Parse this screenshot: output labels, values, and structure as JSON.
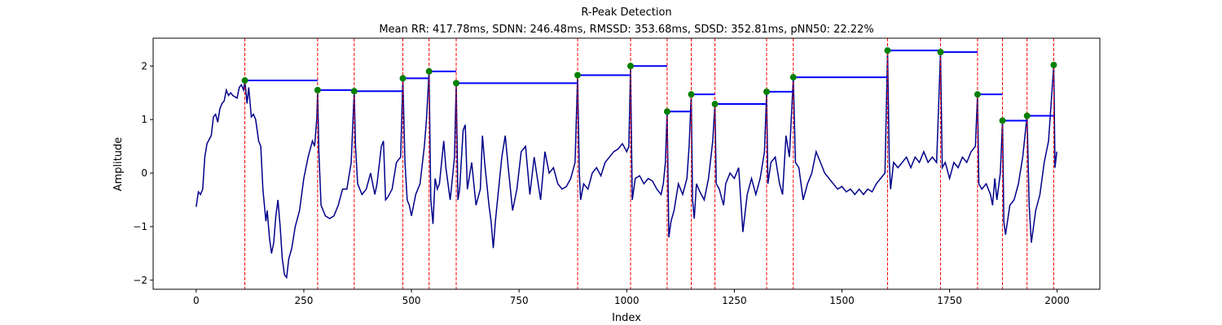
{
  "chart_data": {
    "type": "line",
    "title": "R-Peak Detection",
    "subtitle": "Mean RR: 417.78ms, SDNN: 246.48ms, RMSSD: 353.68ms, SDSD: 352.81ms, pNN50: 22.22%",
    "x_label": "Index",
    "y_label": "Amplitude",
    "xlim": [
      -100,
      2099
    ],
    "ylim": [
      -2.17,
      2.52
    ],
    "xticks": [
      0,
      250,
      500,
      750,
      1000,
      1250,
      1500,
      1750,
      2000
    ],
    "yticks": [
      {
        "value": -2,
        "label": "−2"
      },
      {
        "value": -1,
        "label": "−1"
      },
      0,
      1,
      2
    ],
    "color": "#00008b",
    "x": [
      0,
      5,
      10,
      15,
      20,
      25,
      35,
      40,
      45,
      50,
      55,
      60,
      65,
      70,
      75,
      80,
      85,
      95,
      100,
      105,
      110,
      113,
      118,
      122,
      128,
      133,
      138,
      145,
      150,
      155,
      162,
      165,
      170,
      175,
      180,
      185,
      190,
      195,
      200,
      205,
      210,
      215,
      222,
      230,
      240,
      250,
      260,
      270,
      275,
      280,
      282,
      285,
      290,
      295,
      300,
      310,
      320,
      330,
      340,
      350,
      360,
      367,
      370,
      375,
      385,
      395,
      405,
      415,
      420,
      430,
      435,
      440,
      445,
      455,
      465,
      475,
      480,
      485,
      490,
      495,
      500,
      510,
      520,
      530,
      535,
      541,
      545,
      550,
      555,
      560,
      565,
      575,
      580,
      590,
      595,
      600,
      604,
      608,
      612,
      620,
      625,
      630,
      640,
      650,
      660,
      665,
      670,
      680,
      685,
      690,
      695,
      700,
      710,
      718,
      725,
      735,
      745,
      755,
      765,
      775,
      785,
      800,
      810,
      820,
      830,
      840,
      850,
      860,
      870,
      880,
      886,
      890,
      893,
      900,
      910,
      920,
      930,
      940,
      950,
      960,
      970,
      980,
      990,
      1000,
      1005,
      1009,
      1013,
      1020,
      1030,
      1040,
      1050,
      1060,
      1070,
      1080,
      1085,
      1090,
      1094,
      1098,
      1103,
      1110,
      1120,
      1130,
      1140,
      1145,
      1150,
      1153,
      1157,
      1162,
      1170,
      1180,
      1190,
      1200,
      1205,
      1208,
      1215,
      1225,
      1230,
      1240,
      1250,
      1260,
      1270,
      1280,
      1290,
      1300,
      1310,
      1320,
      1325,
      1328,
      1335,
      1345,
      1355,
      1362,
      1370,
      1378,
      1387,
      1392,
      1400,
      1410,
      1420,
      1430,
      1440,
      1450,
      1460,
      1470,
      1480,
      1490,
      1500,
      1510,
      1520,
      1530,
      1540,
      1550,
      1560,
      1570,
      1580,
      1590,
      1600,
      1606,
      1610,
      1613,
      1620,
      1630,
      1640,
      1650,
      1660,
      1670,
      1680,
      1690,
      1700,
      1710,
      1720,
      1729,
      1733,
      1740,
      1750,
      1760,
      1770,
      1780,
      1790,
      1800,
      1810,
      1815,
      1818,
      1825,
      1835,
      1845,
      1850,
      1855,
      1860,
      1868,
      1873,
      1876,
      1880,
      1890,
      1900,
      1910,
      1920,
      1930,
      1935,
      1940,
      1950,
      1960,
      1970,
      1980,
      1992,
      1995,
      1999
    ],
    "values": [
      -0.63,
      -0.35,
      -0.4,
      -0.3,
      0.3,
      0.55,
      0.7,
      1.05,
      1.1,
      0.95,
      1.2,
      1.3,
      1.35,
      1.55,
      1.45,
      1.5,
      1.45,
      1.4,
      1.6,
      1.65,
      1.55,
      1.73,
      1.3,
      1.6,
      1.05,
      1.1,
      1.0,
      0.6,
      0.5,
      -0.3,
      -0.9,
      -0.7,
      -1.2,
      -1.5,
      -1.3,
      -0.8,
      -0.5,
      -1.0,
      -1.6,
      -1.9,
      -1.95,
      -1.6,
      -1.4,
      -1.0,
      -0.7,
      -0.1,
      0.3,
      0.6,
      0.5,
      1.0,
      1.55,
      0.4,
      -0.6,
      -0.7,
      -0.8,
      -0.85,
      -0.8,
      -0.6,
      -0.3,
      -0.3,
      0.2,
      1.53,
      0.5,
      -0.2,
      -0.4,
      -0.3,
      0.0,
      -0.4,
      -0.2,
      0.5,
      0.6,
      -0.5,
      -0.45,
      -0.3,
      0.2,
      0.3,
      1.77,
      0.2,
      -0.5,
      -0.6,
      -0.8,
      -0.4,
      -0.2,
      0.5,
      1.0,
      1.9,
      -0.5,
      -0.95,
      -0.1,
      -0.3,
      -0.2,
      0.6,
      0.1,
      -0.5,
      -0.1,
      0.3,
      1.68,
      -0.5,
      -0.3,
      0.8,
      0.9,
      -0.3,
      0.2,
      -0.6,
      -0.3,
      0.7,
      0.2,
      -0.6,
      -0.9,
      -1.4,
      -0.9,
      -0.5,
      0.3,
      0.7,
      0.1,
      -0.7,
      -0.3,
      0.4,
      0.5,
      -0.4,
      0.3,
      -0.5,
      0.4,
      0.0,
      0.1,
      -0.2,
      -0.3,
      -0.25,
      -0.1,
      0.2,
      1.83,
      0.0,
      -0.5,
      -0.2,
      -0.3,
      0.0,
      0.1,
      -0.05,
      0.2,
      0.3,
      0.4,
      0.45,
      0.55,
      0.4,
      0.5,
      2.0,
      -0.5,
      -0.1,
      -0.05,
      -0.2,
      -0.1,
      -0.15,
      -0.3,
      -0.4,
      -0.2,
      0.2,
      1.15,
      -1.2,
      -0.9,
      -0.7,
      -0.2,
      -0.4,
      -0.1,
      0.5,
      1.47,
      -0.5,
      -0.85,
      -0.2,
      -0.35,
      -0.5,
      -0.1,
      0.6,
      1.29,
      -0.2,
      -0.3,
      -0.6,
      -0.2,
      0.0,
      -0.1,
      0.1,
      -1.1,
      -0.4,
      -0.1,
      -0.4,
      -0.1,
      0.4,
      1.52,
      -0.2,
      0.2,
      0.3,
      -0.2,
      -0.4,
      0.7,
      0.3,
      1.79,
      0.2,
      0.1,
      -0.5,
      -0.2,
      0.0,
      0.4,
      0.2,
      0.0,
      -0.1,
      -0.2,
      -0.3,
      -0.25,
      -0.35,
      -0.3,
      -0.4,
      -0.3,
      -0.4,
      -0.3,
      -0.35,
      -0.2,
      -0.1,
      0.0,
      2.29,
      0.2,
      -0.3,
      0.2,
      0.1,
      0.2,
      0.3,
      0.1,
      0.3,
      0.2,
      0.4,
      0.2,
      0.3,
      0.2,
      2.26,
      0.1,
      0.2,
      -0.1,
      0.2,
      0.1,
      0.3,
      0.2,
      0.4,
      0.5,
      1.47,
      -0.2,
      -0.3,
      -0.2,
      -0.4,
      -0.6,
      -0.1,
      -0.5,
      0.0,
      0.98,
      -0.9,
      -1.15,
      -0.6,
      -0.5,
      -0.2,
      0.3,
      1.07,
      -0.6,
      -1.3,
      -0.7,
      -0.4,
      0.2,
      0.6,
      2.02,
      0.1,
      0.4
    ],
    "peaks": {
      "color": "green",
      "line_color": "red",
      "rr_color": "blue",
      "x": [
        113,
        282,
        367,
        480,
        541,
        604,
        886,
        1009,
        1094,
        1150,
        1205,
        1325,
        1387,
        1606,
        1729,
        1815,
        1873,
        1930,
        1992
      ],
      "values": [
        1.73,
        1.55,
        1.53,
        1.77,
        1.9,
        1.68,
        1.83,
        2.0,
        1.15,
        1.47,
        1.29,
        1.52,
        1.79,
        2.29,
        2.26,
        1.47,
        0.98,
        1.07,
        2.02
      ]
    }
  }
}
